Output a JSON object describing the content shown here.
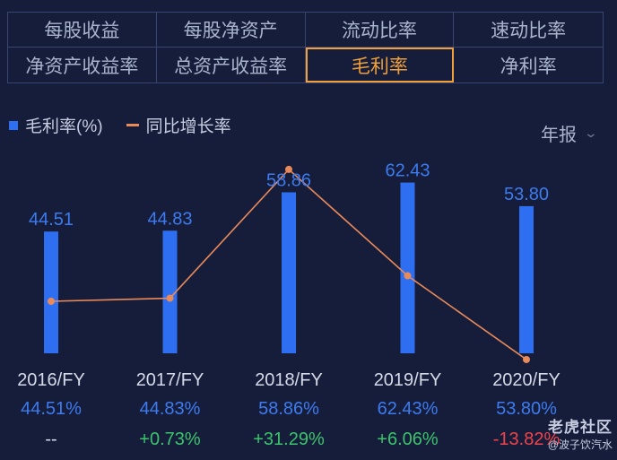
{
  "tabs": [
    {
      "label": "每股收益",
      "active": false
    },
    {
      "label": "每股净资产",
      "active": false
    },
    {
      "label": "流动比率",
      "active": false
    },
    {
      "label": "速动比率",
      "active": false
    },
    {
      "label": "净资产收益率",
      "active": false
    },
    {
      "label": "总资产收益率",
      "active": false
    },
    {
      "label": "毛利率",
      "active": true
    },
    {
      "label": "净利率",
      "active": false
    }
  ],
  "legend": {
    "bar_label": "毛利率(%)",
    "line_label": "同比增长率"
  },
  "period_selector": {
    "label": "年报"
  },
  "colors": {
    "bar": "#2e6ff2",
    "line": "#e98a5a",
    "positive": "#3bc46c",
    "negative": "#f0444a",
    "value_text": "#3d7bf0"
  },
  "chart_data": {
    "type": "bar",
    "categories": [
      "2016/FY",
      "2017/FY",
      "2018/FY",
      "2019/FY",
      "2020/FY"
    ],
    "series": [
      {
        "name": "毛利率(%)",
        "type": "bar",
        "values": [
          44.51,
          44.83,
          58.86,
          62.43,
          53.8
        ],
        "labels": [
          "44.51",
          "44.83",
          "58.86",
          "62.43",
          "53.80"
        ]
      },
      {
        "name": "同比增长率",
        "type": "line",
        "values": [
          null,
          0.73,
          31.29,
          6.06,
          -13.82
        ]
      }
    ],
    "table_rows": {
      "value_labels": [
        "44.51%",
        "44.83%",
        "58.86%",
        "62.43%",
        "53.80%"
      ],
      "growth_labels": [
        "--",
        "+0.73%",
        "+31.29%",
        "+6.06%",
        "-13.82%"
      ]
    }
  },
  "watermark": {
    "line1": "老虎社区",
    "line2": "@波子饮汽水"
  }
}
